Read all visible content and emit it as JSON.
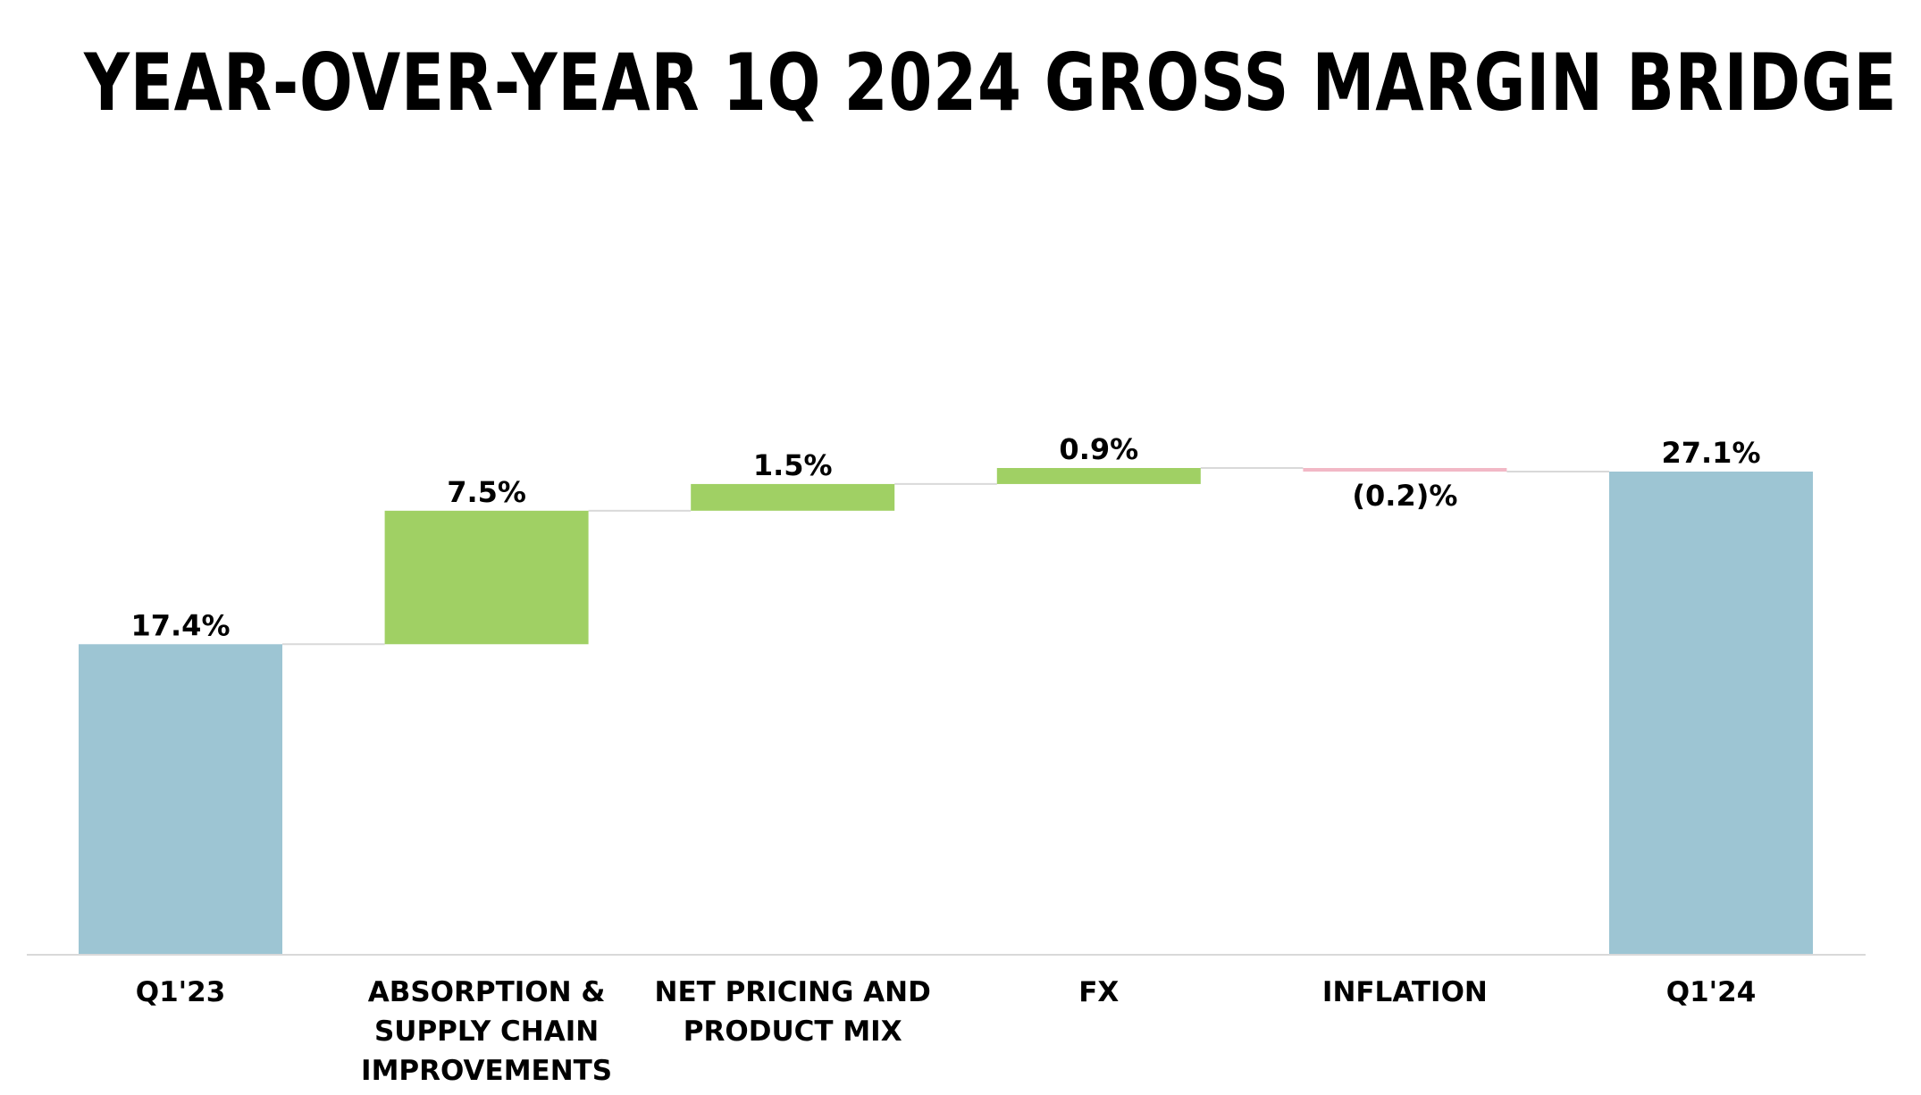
{
  "title": "YEAR-OVER-YEAR 1Q 2024 GROSS MARGIN BRIDGE",
  "colors": {
    "total": "#9dc5d3",
    "increase": "#a0d064",
    "decrease": "#f2b8c6",
    "connector": "#d9d9d9",
    "axis": "#d9d9d9",
    "text": "#000000"
  },
  "chart_data": {
    "type": "bar",
    "subtype": "waterfall",
    "title": "YEAR-OVER-YEAR 1Q 2024 GROSS MARGIN BRIDGE",
    "xlabel": "",
    "ylabel": "",
    "categories": [
      [
        "Q1'23"
      ],
      [
        "ABSORPTION &",
        "SUPPLY CHAIN",
        "IMPROVEMENTS"
      ],
      [
        "NET PRICING AND",
        "PRODUCT MIX"
      ],
      [
        "FX"
      ],
      [
        "INFLATION"
      ],
      [
        "Q1'24"
      ]
    ],
    "values": [
      17.4,
      7.5,
      1.5,
      0.9,
      -0.2,
      27.1
    ],
    "kinds": [
      "total",
      "increase",
      "increase",
      "increase",
      "decrease",
      "total"
    ],
    "labels": [
      "17.4%",
      "7.5%",
      "1.5%",
      "0.9%",
      "(0.2)%",
      "27.1%"
    ],
    "ylim": [
      0,
      27.3
    ],
    "grid": false,
    "legend": "none"
  }
}
